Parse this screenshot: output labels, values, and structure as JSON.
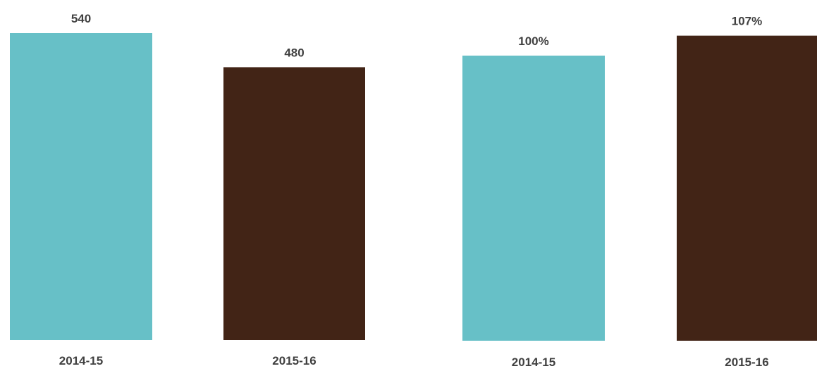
{
  "colors": {
    "series_2014_15": "#67C0C7",
    "series_2015_16": "#422416",
    "label_text": "#404040",
    "background": "#FFFFFF"
  },
  "chart_data": [
    {
      "type": "bar",
      "categories": [
        "2014-15",
        "2015-16"
      ],
      "values": [
        540,
        480
      ],
      "data_labels": [
        "540",
        "480"
      ],
      "bar_colors": [
        "#67C0C7",
        "#422416"
      ],
      "title": "",
      "xlabel": "",
      "ylabel": "",
      "ylim": [
        0,
        600
      ],
      "grid": false,
      "legend": "none"
    },
    {
      "type": "bar",
      "categories": [
        "2014-15",
        "2015-16"
      ],
      "values": [
        100,
        107
      ],
      "data_labels": [
        "100%",
        "107%"
      ],
      "bar_colors": [
        "#67C0C7",
        "#422416"
      ],
      "title": "",
      "xlabel": "",
      "ylabel": "",
      "ylim": [
        0,
        120
      ],
      "grid": false,
      "legend": "none"
    }
  ]
}
